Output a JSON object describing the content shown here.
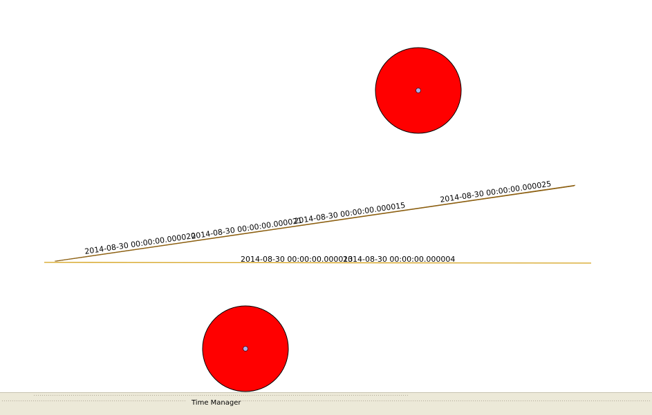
{
  "map": {
    "line_features": [
      {
        "name": "upper-line",
        "color": "#8b5e0f",
        "labels": [
          "2014-08-30 00:00:00.000020",
          "2014-08-30 00:00:00.000021",
          "2014-08-30 00:00:00.000015",
          "2014-08-30 00:00:00.000025"
        ]
      },
      {
        "name": "lower-line",
        "color": "#d4a017",
        "labels": [
          "2014-08-30 00:00:00.000013",
          "2014-08-30 00:00:00.000004"
        ]
      }
    ],
    "point_features": [
      {
        "name": "upper-point",
        "fill": "#ff0000",
        "center_fill": "#a9a9e8"
      },
      {
        "name": "lower-point",
        "fill": "#ff0000",
        "center_fill": "#a9a9e8"
      }
    ]
  },
  "dock": {
    "title": "Time Manager"
  }
}
